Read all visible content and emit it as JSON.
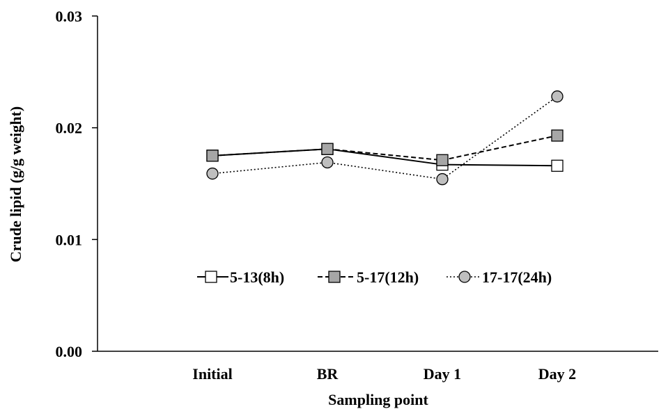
{
  "chart_data": {
    "type": "line",
    "categories": [
      "Initial",
      "BR",
      "Day 1",
      "Day 2"
    ],
    "xlabel": "Sampling point",
    "ylabel": "Crude lipid (g/g weight)",
    "ylim": [
      0,
      0.03
    ],
    "yticks": [
      0.0,
      0.01,
      0.02,
      0.03
    ],
    "ytick_labels": [
      "0.00",
      "0.01",
      "0.02",
      "0.03"
    ],
    "grid": false,
    "legend_position": "center (inside plot, lower middle)",
    "series": [
      {
        "name": "5-13(8h)",
        "values": [
          0.0175,
          0.0181,
          0.0167,
          0.0166
        ],
        "line": "solid",
        "marker": "square",
        "marker_fill": "#ffffff",
        "color": "#000000"
      },
      {
        "name": "5-17(12h)",
        "values": [
          0.0175,
          0.0181,
          0.0171,
          0.0193
        ],
        "line": "dashed",
        "marker": "square",
        "marker_fill": "#a6a6a6",
        "color": "#000000"
      },
      {
        "name": "17-17(24h)",
        "values": [
          0.0159,
          0.0169,
          0.0154,
          0.0228
        ],
        "line": "dotted",
        "marker": "circle",
        "marker_fill": "#bfbfbf",
        "color": "#000000"
      }
    ]
  }
}
